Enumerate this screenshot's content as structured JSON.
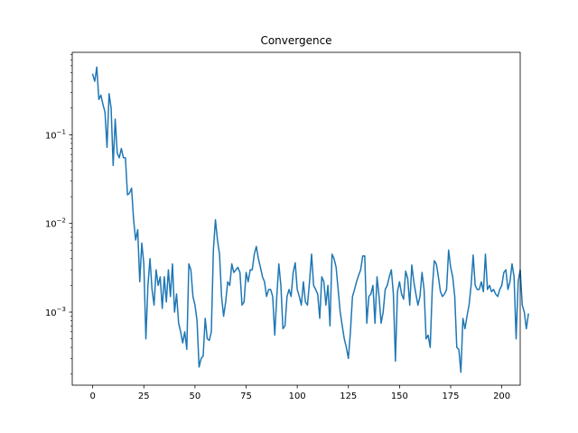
{
  "chart_data": {
    "type": "line",
    "title": "Convergence",
    "xlabel": "",
    "ylabel": "",
    "yscale": "log",
    "xlim": [
      -10,
      209
    ],
    "ylim": [
      0.00015,
      0.85
    ],
    "grid": false,
    "legend": "none",
    "xticks": [
      0,
      25,
      50,
      75,
      100,
      125,
      150,
      175,
      200
    ],
    "yticks": [
      {
        "value": 0.1,
        "base": "10",
        "exp": "−1"
      },
      {
        "value": 0.01,
        "base": "10",
        "exp": "−2"
      },
      {
        "value": 0.001,
        "base": "10",
        "exp": "−3"
      }
    ],
    "series": [
      {
        "name": "",
        "color": "#1f77b4",
        "x_start": 0,
        "x_step": 1,
        "values": [
          0.48,
          0.4,
          0.58,
          0.25,
          0.28,
          0.22,
          0.18,
          0.072,
          0.29,
          0.2,
          0.045,
          0.15,
          0.062,
          0.055,
          0.07,
          0.055,
          0.055,
          0.021,
          0.022,
          0.025,
          0.011,
          0.0065,
          0.0085,
          0.0022,
          0.006,
          0.0035,
          0.0005,
          0.002,
          0.004,
          0.0018,
          0.0012,
          0.003,
          0.002,
          0.0025,
          0.0011,
          0.0025,
          0.0013,
          0.003,
          0.0015,
          0.0035,
          0.001,
          0.0016,
          0.00075,
          0.0006,
          0.00045,
          0.0006,
          0.00038,
          0.0035,
          0.003,
          0.0015,
          0.0012,
          0.0008,
          0.00024,
          0.0003,
          0.00032,
          0.00085,
          0.0005,
          0.00048,
          0.0006,
          0.005,
          0.011,
          0.0065,
          0.0045,
          0.0015,
          0.0009,
          0.0013,
          0.0022,
          0.002,
          0.0035,
          0.0028,
          0.003,
          0.0032,
          0.0028,
          0.0012,
          0.0013,
          0.0028,
          0.0022,
          0.003,
          0.003,
          0.0045,
          0.0055,
          0.004,
          0.0032,
          0.0025,
          0.0022,
          0.0015,
          0.0018,
          0.0018,
          0.0015,
          0.00055,
          0.0015,
          0.0035,
          0.002,
          0.00065,
          0.0007,
          0.0015,
          0.0018,
          0.0015,
          0.0028,
          0.0036,
          0.0018,
          0.0015,
          0.0012,
          0.0022,
          0.0013,
          0.0012,
          0.0022,
          0.0045,
          0.002,
          0.0018,
          0.0016,
          0.00085,
          0.0025,
          0.0022,
          0.0012,
          0.002,
          0.0007,
          0.0045,
          0.004,
          0.0032,
          0.0018,
          0.001,
          0.0007,
          0.0005,
          0.0004,
          0.0003,
          0.0006,
          0.0015,
          0.0018,
          0.0022,
          0.0026,
          0.003,
          0.0043,
          0.0043,
          0.00075,
          0.0015,
          0.0016,
          0.002,
          0.00075,
          0.0025,
          0.0015,
          0.00075,
          0.001,
          0.0018,
          0.002,
          0.0025,
          0.003,
          0.0016,
          0.00028,
          0.0017,
          0.0022,
          0.0016,
          0.0014,
          0.0029,
          0.0024,
          0.0012,
          0.0034,
          0.0022,
          0.0016,
          0.0012,
          0.0015,
          0.0028,
          0.0018,
          0.0005,
          0.00055,
          0.0004,
          0.0018,
          0.0038,
          0.0035,
          0.0025,
          0.0017,
          0.0015,
          0.0016,
          0.0018,
          0.005,
          0.0032,
          0.0025,
          0.0015,
          0.0004,
          0.00038,
          0.00021,
          0.00085,
          0.00065,
          0.0009,
          0.0012,
          0.002,
          0.0044,
          0.002,
          0.0018,
          0.0018,
          0.0022,
          0.0017,
          0.0045,
          0.0018,
          0.002,
          0.0017,
          0.0018,
          0.0016,
          0.0015,
          0.0018,
          0.002,
          0.0028,
          0.003,
          0.0018,
          0.0022,
          0.0035,
          0.0025,
          0.0005,
          0.0022,
          0.003,
          0.0012,
          0.001,
          0.00065,
          0.00095
        ]
      }
    ]
  }
}
